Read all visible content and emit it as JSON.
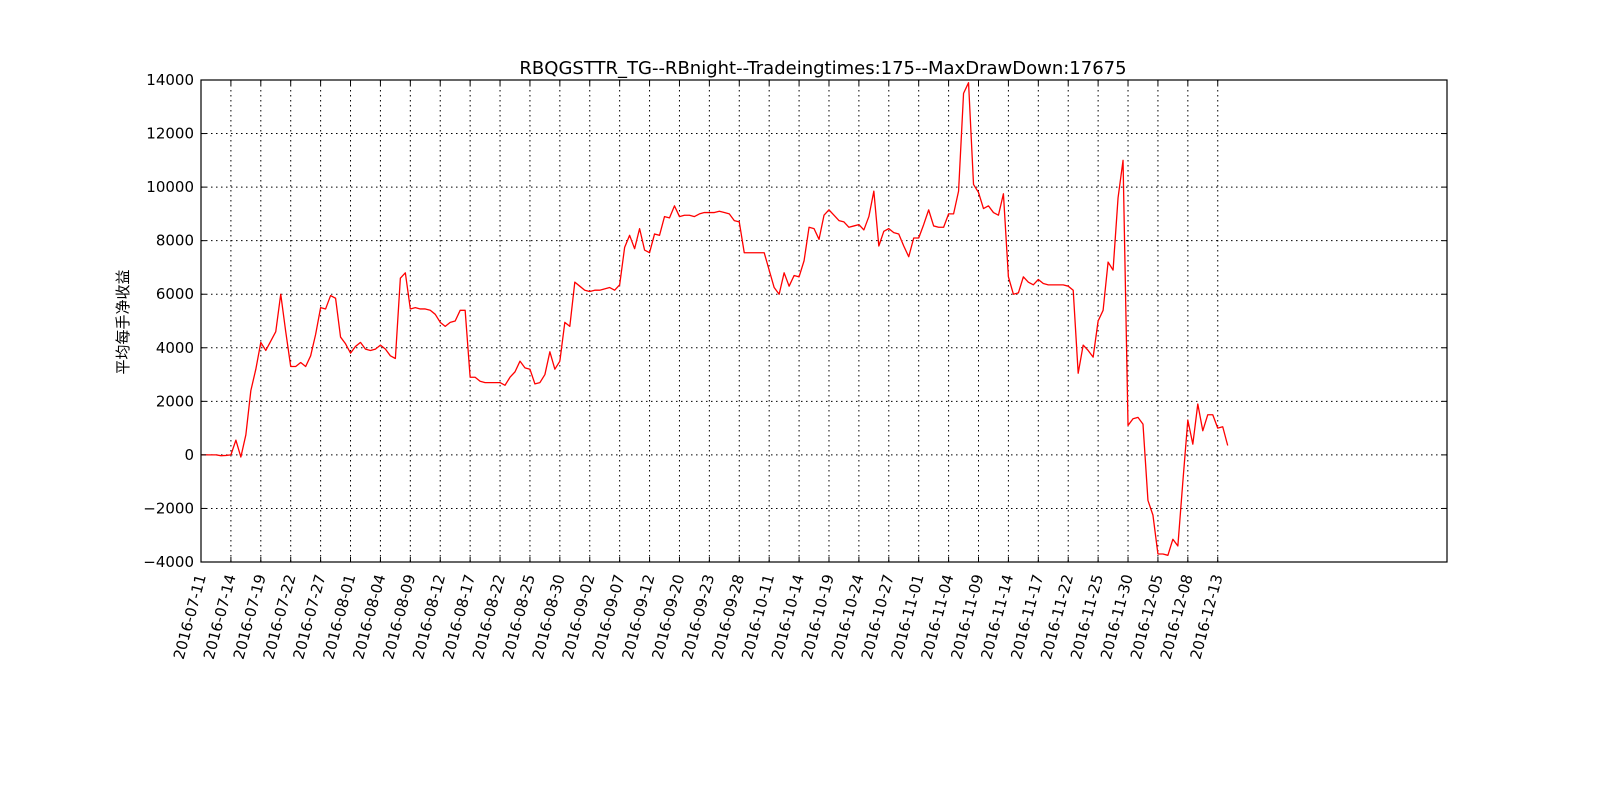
{
  "chart_data": {
    "type": "line",
    "title": "RBQGSTTR_TG--RBnight--Tradeingtimes:175--MaxDrawDown:17675",
    "xlabel": "",
    "ylabel": "平均每手净收益",
    "ylim": [
      -4000,
      14000
    ],
    "yticks": [
      -4000,
      -2000,
      0,
      2000,
      4000,
      6000,
      8000,
      10000,
      12000,
      14000
    ],
    "ytick_labels": [
      "−4000",
      "−2000",
      "0",
      "2000",
      "4000",
      "6000",
      "8000",
      "10000",
      "12000",
      "14000"
    ],
    "xlim": [
      0,
      250
    ],
    "xticks": [
      0,
      6,
      12,
      18,
      24,
      30,
      36,
      42,
      48,
      54,
      60,
      66,
      72,
      78,
      84,
      90,
      96,
      102,
      108,
      114,
      120,
      126,
      132,
      138,
      144,
      150,
      156,
      162,
      168,
      174,
      180,
      186,
      192,
      198,
      204
    ],
    "xtick_labels": [
      "2016-07-11",
      "2016-07-14",
      "2016-07-19",
      "2016-07-22",
      "2016-07-27",
      "2016-08-01",
      "2016-08-04",
      "2016-08-09",
      "2016-08-12",
      "2016-08-17",
      "2016-08-22",
      "2016-08-25",
      "2016-08-30",
      "2016-09-02",
      "2016-09-07",
      "2016-09-12",
      "2016-09-20",
      "2016-09-23",
      "2016-09-28",
      "2016-10-11",
      "2016-10-14",
      "2016-10-19",
      "2016-10-24",
      "2016-10-27",
      "2016-11-01",
      "2016-11-04",
      "2016-11-09",
      "2016-11-14",
      "2016-11-17",
      "2016-11-22",
      "2016-11-25",
      "2016-11-30",
      "2016-12-05",
      "2016-12-08",
      "2016-12-13"
    ],
    "grid": true,
    "legend": "none",
    "series": [
      {
        "name": "",
        "color": "#ff0000",
        "values": [
          0,
          0,
          0,
          0,
          -30,
          -20,
          0,
          550,
          -80,
          750,
          2400,
          3200,
          4200,
          3900,
          4250,
          4600,
          6000,
          4600,
          3300,
          3300,
          3450,
          3300,
          3700,
          4500,
          5500,
          5450,
          5950,
          5850,
          4400,
          4150,
          3800,
          4050,
          4200,
          3950,
          3900,
          3950,
          4100,
          3950,
          3700,
          3600,
          6600,
          6800,
          5450,
          5500,
          5450,
          5450,
          5400,
          5250,
          4950,
          4800,
          4950,
          5000,
          5400,
          5400,
          2900,
          2900,
          2750,
          2700,
          2700,
          2700,
          2700,
          2600,
          2900,
          3100,
          3500,
          3250,
          3200,
          2650,
          2700,
          3000,
          3850,
          3200,
          3500,
          4950,
          4800,
          6450,
          6300,
          6150,
          6100,
          6150,
          6150,
          6200,
          6250,
          6150,
          6350,
          7750,
          8200,
          7700,
          8450,
          7650,
          7550,
          8250,
          8200,
          8900,
          8850,
          9300,
          8900,
          8950,
          8950,
          8900,
          9000,
          9050,
          9050,
          9050,
          9100,
          9050,
          9000,
          8750,
          8700,
          7550,
          7550,
          7550,
          7550,
          7550,
          6900,
          6250,
          6000,
          6800,
          6300,
          6700,
          6650,
          7250,
          8500,
          8450,
          8050,
          8950,
          9150,
          8950,
          8750,
          8700,
          8500,
          8550,
          8600,
          8400,
          8900,
          9850,
          7800,
          8350,
          8450,
          8300,
          8250,
          7800,
          7400,
          8100,
          8100,
          8600,
          9150,
          8550,
          8500,
          8500,
          9000,
          9000,
          9850,
          13500,
          13900,
          10100,
          9800,
          9200,
          9300,
          9050,
          8950,
          9750,
          6650,
          6000,
          6050,
          6650,
          6450,
          6350,
          6550,
          6400,
          6350,
          6350,
          6350,
          6350,
          6300,
          6150,
          3050,
          4100,
          3900,
          3650,
          5000,
          5400,
          7200,
          6900,
          9600,
          11000,
          1100,
          1350,
          1400,
          1150,
          -1700,
          -2250,
          -3700,
          -3700,
          -3750,
          -3150,
          -3400,
          -1000,
          1300,
          400,
          1900,
          900,
          1500,
          1500,
          1000,
          1050,
          350
        ]
      }
    ]
  }
}
